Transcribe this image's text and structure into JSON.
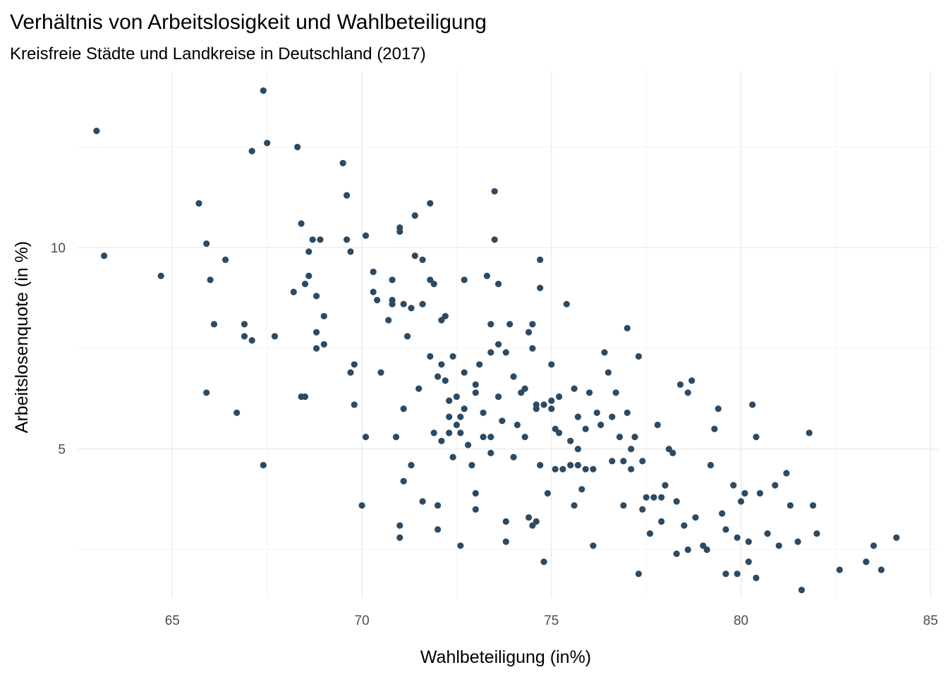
{
  "chart_data": {
    "type": "scatter",
    "title": "Verhältnis von Arbeitslosigkeit und Wahlbeteiligung",
    "subtitle": "Kreisfreie Städte und Landkreise in Deutschland (2017)",
    "xlabel": "Wahlbeteiligung (in%)",
    "ylabel": "Arbeitslosenquote (in %)",
    "xlim": [
      62.5,
      85.2
    ],
    "ylim": [
      1.3,
      14.4
    ],
    "xticks": [
      65,
      70,
      75,
      80,
      85
    ],
    "yticks": [
      5,
      10
    ],
    "grid": true,
    "legend": "none",
    "point_color": "#2c4a63",
    "points": [
      [
        63.0,
        12.9
      ],
      [
        63.2,
        9.8
      ],
      [
        64.7,
        9.3
      ],
      [
        65.7,
        11.1
      ],
      [
        65.9,
        10.1
      ],
      [
        65.9,
        6.4
      ],
      [
        66.0,
        9.2
      ],
      [
        66.1,
        8.1
      ],
      [
        66.4,
        9.7
      ],
      [
        66.7,
        5.9
      ],
      [
        66.9,
        8.1
      ],
      [
        66.9,
        7.8
      ],
      [
        67.1,
        12.4
      ],
      [
        67.1,
        7.7
      ],
      [
        67.4,
        13.9
      ],
      [
        67.4,
        4.6
      ],
      [
        67.5,
        12.6
      ],
      [
        67.7,
        7.8
      ],
      [
        68.2,
        8.9
      ],
      [
        68.3,
        12.5
      ],
      [
        68.4,
        10.6
      ],
      [
        68.4,
        6.3
      ],
      [
        68.5,
        6.3
      ],
      [
        68.5,
        9.1
      ],
      [
        68.6,
        9.3
      ],
      [
        68.6,
        9.9
      ],
      [
        68.7,
        10.2
      ],
      [
        68.8,
        8.8
      ],
      [
        68.8,
        7.9
      ],
      [
        68.8,
        7.5
      ],
      [
        68.9,
        10.2
      ],
      [
        69.0,
        8.3
      ],
      [
        69.0,
        7.6
      ],
      [
        69.5,
        12.1
      ],
      [
        69.6,
        11.3
      ],
      [
        69.6,
        10.2
      ],
      [
        69.7,
        9.9
      ],
      [
        69.7,
        6.9
      ],
      [
        69.8,
        7.1
      ],
      [
        69.8,
        6.1
      ],
      [
        70.0,
        3.6
      ],
      [
        70.1,
        10.3
      ],
      [
        70.1,
        5.3
      ],
      [
        70.3,
        9.4
      ],
      [
        70.3,
        8.9
      ],
      [
        70.4,
        8.7
      ],
      [
        70.5,
        6.9
      ],
      [
        70.7,
        8.2
      ],
      [
        70.8,
        9.2
      ],
      [
        70.8,
        8.7
      ],
      [
        70.8,
        8.6
      ],
      [
        70.9,
        5.3
      ],
      [
        71.0,
        10.5
      ],
      [
        71.0,
        10.4
      ],
      [
        71.0,
        3.1
      ],
      [
        71.0,
        2.8
      ],
      [
        71.1,
        8.6
      ],
      [
        71.1,
        6.0
      ],
      [
        71.1,
        4.2
      ],
      [
        71.2,
        7.8
      ],
      [
        71.3,
        8.5
      ],
      [
        71.3,
        4.6
      ],
      [
        71.4,
        10.8
      ],
      [
        71.4,
        9.8
      ],
      [
        71.5,
        6.5
      ],
      [
        71.6,
        9.7
      ],
      [
        71.6,
        8.6
      ],
      [
        71.6,
        3.7
      ],
      [
        71.8,
        11.1
      ],
      [
        71.8,
        9.2
      ],
      [
        71.8,
        7.3
      ],
      [
        71.9,
        9.1
      ],
      [
        71.9,
        5.4
      ],
      [
        72.0,
        6.8
      ],
      [
        72.0,
        3.6
      ],
      [
        72.0,
        3.0
      ],
      [
        72.1,
        8.2
      ],
      [
        72.1,
        7.1
      ],
      [
        72.1,
        5.2
      ],
      [
        72.2,
        8.3
      ],
      [
        72.2,
        6.7
      ],
      [
        72.3,
        6.2
      ],
      [
        72.3,
        5.8
      ],
      [
        72.3,
        5.4
      ],
      [
        72.4,
        7.3
      ],
      [
        72.4,
        4.8
      ],
      [
        72.5,
        6.3
      ],
      [
        72.5,
        5.6
      ],
      [
        72.6,
        5.4
      ],
      [
        72.6,
        5.8
      ],
      [
        72.6,
        2.6
      ],
      [
        72.7,
        9.2
      ],
      [
        72.7,
        6.9
      ],
      [
        72.7,
        6.0
      ],
      [
        72.8,
        5.1
      ],
      [
        72.9,
        4.6
      ],
      [
        73.0,
        6.6
      ],
      [
        73.0,
        6.4
      ],
      [
        73.0,
        3.9
      ],
      [
        73.0,
        3.5
      ],
      [
        73.1,
        7.1
      ],
      [
        73.2,
        5.9
      ],
      [
        73.2,
        5.3
      ],
      [
        73.3,
        9.3
      ],
      [
        73.4,
        8.1
      ],
      [
        73.4,
        7.4
      ],
      [
        73.4,
        5.3
      ],
      [
        73.4,
        4.9
      ],
      [
        73.5,
        11.4
      ],
      [
        73.5,
        10.2
      ],
      [
        73.6,
        9.1
      ],
      [
        73.6,
        7.6
      ],
      [
        73.6,
        6.3
      ],
      [
        73.7,
        5.7
      ],
      [
        73.8,
        7.4
      ],
      [
        73.8,
        3.2
      ],
      [
        73.8,
        2.7
      ],
      [
        73.9,
        8.1
      ],
      [
        74.0,
        6.8
      ],
      [
        74.0,
        4.8
      ],
      [
        74.1,
        5.6
      ],
      [
        74.2,
        6.4
      ],
      [
        74.3,
        6.5
      ],
      [
        74.4,
        7.9
      ],
      [
        74.5,
        8.1
      ],
      [
        74.5,
        7.5
      ],
      [
        74.6,
        6.0
      ],
      [
        74.7,
        4.6
      ],
      [
        74.8,
        2.2
      ],
      [
        74.9,
        3.9
      ],
      [
        75.0,
        6.0
      ],
      [
        75.0,
        6.2
      ],
      [
        75.1,
        5.5
      ],
      [
        75.2,
        5.4
      ],
      [
        75.4,
        8.6
      ],
      [
        75.5,
        5.2
      ],
      [
        75.6,
        6.5
      ],
      [
        75.6,
        3.6
      ],
      [
        75.7,
        5.8
      ],
      [
        75.7,
        5.0
      ],
      [
        75.8,
        4.0
      ],
      [
        75.9,
        5.5
      ],
      [
        76.0,
        6.4
      ],
      [
        76.1,
        4.5
      ],
      [
        76.2,
        5.9
      ],
      [
        76.4,
        7.4
      ],
      [
        76.5,
        6.9
      ],
      [
        76.6,
        5.8
      ],
      [
        76.7,
        6.4
      ],
      [
        76.8,
        5.3
      ],
      [
        76.9,
        4.7
      ],
      [
        77.0,
        8.0
      ],
      [
        77.0,
        5.9
      ],
      [
        77.1,
        4.5
      ],
      [
        77.2,
        5.3
      ],
      [
        77.3,
        7.3
      ],
      [
        77.4,
        4.7
      ],
      [
        77.5,
        3.8
      ],
      [
        77.6,
        2.9
      ],
      [
        77.7,
        3.8
      ],
      [
        77.8,
        5.6
      ],
      [
        77.9,
        3.2
      ],
      [
        78.0,
        4.1
      ],
      [
        78.1,
        5.0
      ],
      [
        78.2,
        4.9
      ],
      [
        78.3,
        3.7
      ],
      [
        78.4,
        6.6
      ],
      [
        78.5,
        3.1
      ],
      [
        78.6,
        6.4
      ],
      [
        78.7,
        6.7
      ],
      [
        78.8,
        3.3
      ],
      [
        79.0,
        2.6
      ],
      [
        79.2,
        4.6
      ],
      [
        79.3,
        5.5
      ],
      [
        79.4,
        6.0
      ],
      [
        79.5,
        3.4
      ],
      [
        79.6,
        3.0
      ],
      [
        79.8,
        4.1
      ],
      [
        79.9,
        2.8
      ],
      [
        80.0,
        3.7
      ],
      [
        80.1,
        3.9
      ],
      [
        80.2,
        2.7
      ],
      [
        80.3,
        6.1
      ],
      [
        80.4,
        5.3
      ],
      [
        80.5,
        3.9
      ],
      [
        80.7,
        2.9
      ],
      [
        80.9,
        4.1
      ],
      [
        81.0,
        2.6
      ],
      [
        81.2,
        4.4
      ],
      [
        81.3,
        3.6
      ],
      [
        81.5,
        2.7
      ],
      [
        81.8,
        5.4
      ],
      [
        81.9,
        3.6
      ],
      [
        82.0,
        2.9
      ],
      [
        82.6,
        2.0
      ],
      [
        83.3,
        2.2
      ],
      [
        83.5,
        2.6
      ],
      [
        83.7,
        2.0
      ],
      [
        84.1,
        2.8
      ],
      [
        81.6,
        1.5
      ],
      [
        74.4,
        3.3
      ],
      [
        74.5,
        3.1
      ],
      [
        74.6,
        3.2
      ],
      [
        74.3,
        5.3
      ],
      [
        74.6,
        6.1
      ],
      [
        74.8,
        6.1
      ],
      [
        74.7,
        9.0
      ],
      [
        74.7,
        9.7
      ],
      [
        75.0,
        7.1
      ],
      [
        75.2,
        6.3
      ],
      [
        75.1,
        4.5
      ],
      [
        75.3,
        4.5
      ],
      [
        75.5,
        4.6
      ],
      [
        75.7,
        4.6
      ],
      [
        75.9,
        4.5
      ],
      [
        76.3,
        5.6
      ],
      [
        76.6,
        4.7
      ],
      [
        77.1,
        5.0
      ],
      [
        76.9,
        3.6
      ],
      [
        77.4,
        3.5
      ],
      [
        77.9,
        3.8
      ],
      [
        78.3,
        2.4
      ],
      [
        78.6,
        2.5
      ],
      [
        79.1,
        2.5
      ],
      [
        79.6,
        1.9
      ],
      [
        79.9,
        1.9
      ],
      [
        80.2,
        2.2
      ],
      [
        80.4,
        1.8
      ],
      [
        77.3,
        1.9
      ],
      [
        76.1,
        2.6
      ]
    ]
  }
}
